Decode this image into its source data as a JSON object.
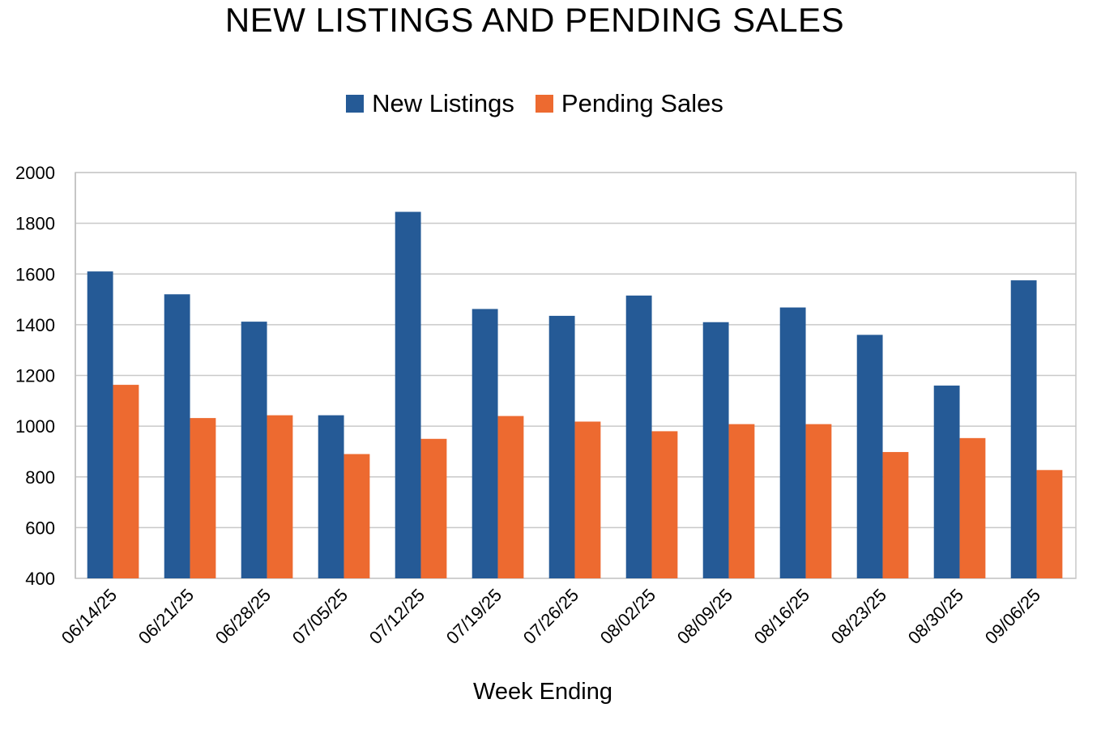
{
  "chart_data": {
    "type": "bar",
    "title": "NEW LISTINGS AND PENDING SALES",
    "xlabel": "Week Ending",
    "ylabel": "",
    "ylim": [
      400,
      2000
    ],
    "yticks": [
      400,
      600,
      800,
      1000,
      1200,
      1400,
      1600,
      1800,
      2000
    ],
    "grid": true,
    "legend_position": "top-center",
    "categories": [
      "06/14/25",
      "06/21/25",
      "06/28/25",
      "07/05/25",
      "07/12/25",
      "07/19/25",
      "07/26/25",
      "08/02/25",
      "08/09/25",
      "08/16/25",
      "08/23/25",
      "08/30/25",
      "09/06/25"
    ],
    "series": [
      {
        "name": "New Listings",
        "color": "#255a96",
        "values": [
          1610,
          1520,
          1412,
          1043,
          1845,
          1462,
          1435,
          1515,
          1410,
          1468,
          1360,
          1160,
          1575
        ]
      },
      {
        "name": "Pending Sales",
        "color": "#ed6a30",
        "values": [
          1163,
          1032,
          1043,
          890,
          950,
          1040,
          1018,
          980,
          1008,
          1008,
          898,
          953,
          827
        ]
      }
    ]
  }
}
